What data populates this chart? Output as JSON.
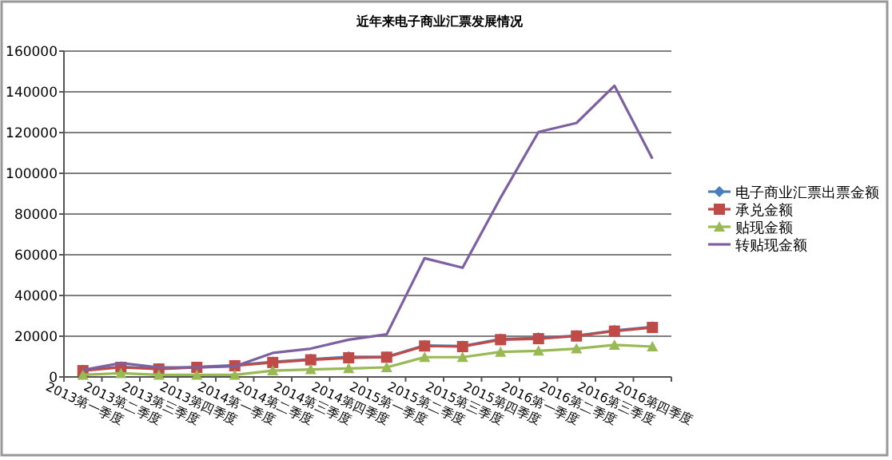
{
  "chart_data": {
    "type": "line",
    "title": "近年来电子商业汇票发展情况",
    "categories": [
      "2013第一季度",
      "2013第二季度",
      "2013第三季度",
      "2013第四季度",
      "2014第一季度",
      "2014第二季度",
      "2014第三季度",
      "2014第四季度",
      "2015第一季度",
      "2015第二季度",
      "2015第三季度",
      "2015第四季度",
      "2016第一季度",
      "2016第二季度",
      "2016第三季度",
      "2016第四季度"
    ],
    "series": [
      {
        "name": "电子商业汇票出票金额",
        "color": "#4a7ebb",
        "marker": "diamond",
        "values": [
          3300,
          5000,
          4100,
          4900,
          5700,
          7400,
          8700,
          9900,
          9900,
          15500,
          15200,
          18600,
          19200,
          20300,
          22800,
          24600
        ]
      },
      {
        "name": "承兑金额",
        "color": "#be4b48",
        "marker": "square",
        "values": [
          3100,
          4700,
          3900,
          4700,
          5500,
          7100,
          8400,
          9400,
          9700,
          15200,
          14900,
          18300,
          18800,
          20100,
          22500,
          24300
        ]
      },
      {
        "name": "贴现金额",
        "color": "#98b954",
        "marker": "triangle",
        "values": [
          1000,
          1800,
          1000,
          1000,
          1000,
          3100,
          3700,
          4200,
          4700,
          9700,
          9700,
          12300,
          12800,
          13900,
          15700,
          14900
        ]
      },
      {
        "name": "转贴现金额",
        "color": "#7d60a0",
        "marker": "none",
        "values": [
          3400,
          6800,
          4700,
          4700,
          5200,
          11800,
          13900,
          18300,
          20900,
          58300,
          53600,
          88000,
          120300,
          124700,
          143000,
          107200
        ]
      }
    ],
    "ylim": [
      0,
      160000
    ],
    "yticks": [
      0,
      20000,
      40000,
      60000,
      80000,
      100000,
      120000,
      140000,
      160000
    ],
    "grid": "y",
    "legend": "right"
  }
}
